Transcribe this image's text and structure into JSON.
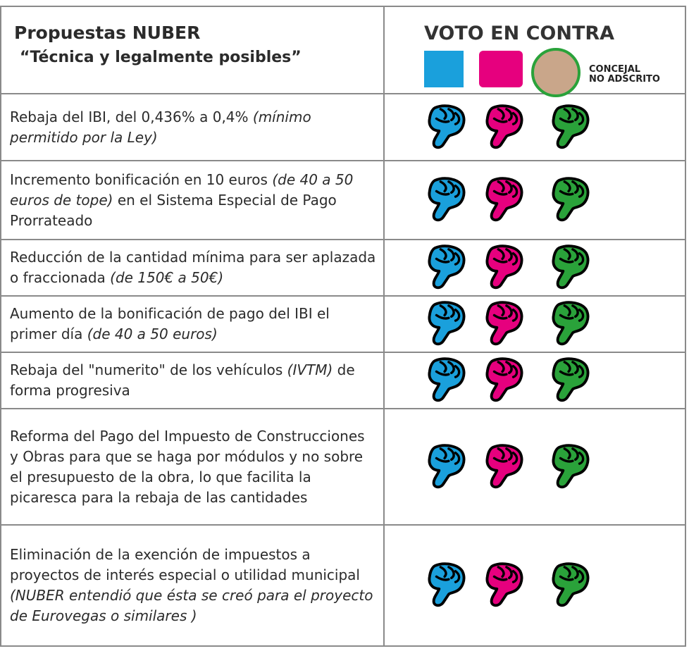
{
  "header": {
    "title": "Propuestas NUBER",
    "subtitle": "“Técnica y legalmente posibles”",
    "vote_title": "VOTO EN CONTRA",
    "concejal": [
      "CONCEJAL",
      "NO ADSCRITO"
    ]
  },
  "rows": [
    {
      "parts": [
        {
          "text": "Rebaja del IBI, del 0,436% a 0,4% "
        },
        {
          "text": "(mínimo permitido por la Ley)",
          "italic": true
        }
      ]
    },
    {
      "parts": [
        {
          "text": "Incremento bonificación en 10 euros "
        },
        {
          "text": "(de 40 a 50 euros de tope)",
          "italic": true
        },
        {
          "text": " en el Sistema Especial de Pago Prorrateado"
        }
      ]
    },
    {
      "parts": [
        {
          "text": "Reducción de la cantidad mínima para ser aplazada o fraccionada "
        },
        {
          "text": "(de 150€ a 50€)",
          "italic": true
        }
      ]
    },
    {
      "parts": [
        {
          "text": "Aumento de la bonificación de pago del IBI el primer día "
        },
        {
          "text": "(de 40 a 50 euros)",
          "italic": true
        }
      ]
    },
    {
      "parts": [
        {
          "text": "Rebaja del \"numerito\" de los vehículos "
        },
        {
          "text": "(IVTM)",
          "italic": true
        },
        {
          "text": " de forma progresiva"
        }
      ]
    },
    {
      "parts": [
        {
          "text": "Reforma del Pago del Impuesto de Construcciones y Obras para que se haga por módulos y no sobre el presupuesto de la obra, lo que facilita la picaresca para la rebaja de las cantidades"
        }
      ]
    },
    {
      "parts": [
        {
          "text": "Eliminación de  la exención de impuestos a proyectos de interés especial o utilidad municipal "
        },
        {
          "text": "(NUBER entendió que ésta se creó para el proyecto de Eurovegas o similares )",
          "italic": true
        }
      ]
    }
  ]
}
